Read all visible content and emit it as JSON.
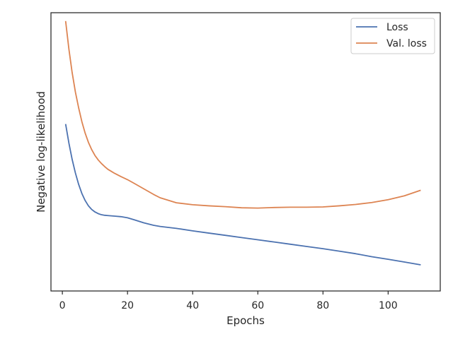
{
  "chart_data": {
    "type": "line",
    "title": "",
    "xlabel": "Epochs",
    "ylabel": "Negative log-likelihood",
    "xlim": [
      -3.5,
      116
    ],
    "ylim": [
      0,
      1
    ],
    "xticks": [
      0,
      20,
      40,
      60,
      80,
      100
    ],
    "x_tick_labels": [
      "0",
      "20",
      "40",
      "60",
      "80",
      "100"
    ],
    "y_ticks_shown": false,
    "grid": false,
    "legend_position": "top-right",
    "series": [
      {
        "name": "Loss",
        "color": "#4c72b0",
        "x": [
          1,
          2,
          3,
          4,
          5,
          6,
          7,
          8,
          9,
          10,
          11,
          12,
          13,
          14,
          15,
          16,
          18,
          20,
          22,
          25,
          28,
          30,
          35,
          40,
          45,
          50,
          55,
          60,
          65,
          70,
          75,
          80,
          85,
          90,
          95,
          100,
          105,
          110
        ],
        "y": [
          0.6,
          0.532,
          0.473,
          0.424,
          0.383,
          0.35,
          0.325,
          0.306,
          0.293,
          0.284,
          0.278,
          0.274,
          0.272,
          0.271,
          0.27,
          0.269,
          0.267,
          0.263,
          0.256,
          0.245,
          0.236,
          0.232,
          0.225,
          0.216,
          0.208,
          0.2,
          0.192,
          0.184,
          0.176,
          0.168,
          0.16,
          0.152,
          0.143,
          0.134,
          0.123,
          0.114,
          0.104,
          0.094
        ]
      },
      {
        "name": "Val. loss",
        "color": "#dd8452",
        "x": [
          1,
          2,
          3,
          4,
          5,
          6,
          7,
          8,
          9,
          10,
          11,
          12,
          13,
          14,
          15,
          16,
          18,
          20,
          22,
          25,
          28,
          30,
          35,
          40,
          45,
          50,
          55,
          60,
          65,
          70,
          75,
          80,
          85,
          90,
          95,
          100,
          105,
          110
        ],
        "y": [
          0.97,
          0.87,
          0.785,
          0.715,
          0.658,
          0.608,
          0.567,
          0.534,
          0.508,
          0.487,
          0.471,
          0.458,
          0.447,
          0.437,
          0.43,
          0.423,
          0.411,
          0.4,
          0.387,
          0.367,
          0.347,
          0.335,
          0.317,
          0.31,
          0.306,
          0.303,
          0.299,
          0.298,
          0.3,
          0.301,
          0.301,
          0.302,
          0.306,
          0.311,
          0.318,
          0.328,
          0.342,
          0.362
        ]
      }
    ]
  }
}
